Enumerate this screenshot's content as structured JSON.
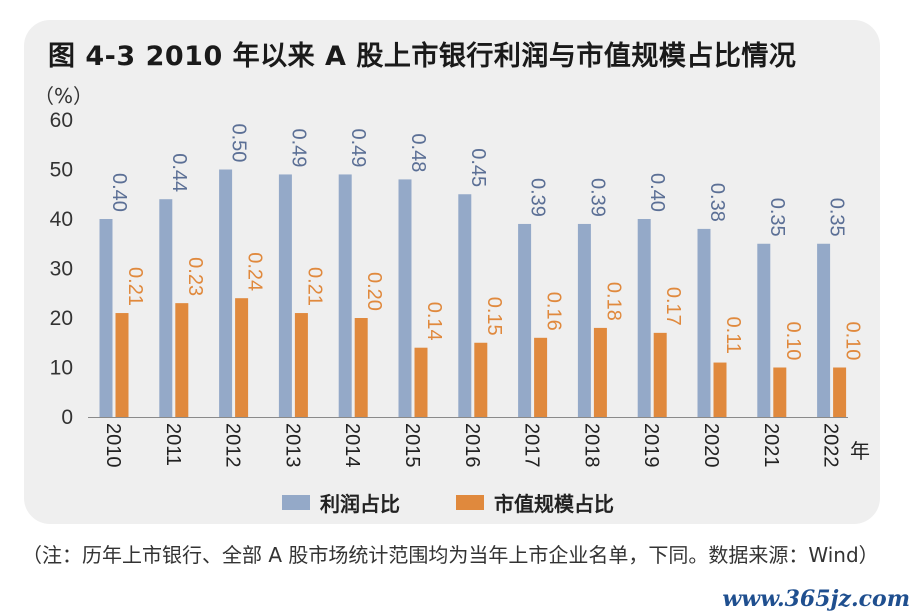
{
  "title": "图 4-3   2010 年以来 A 股上市银行利润与市值规模占比情况",
  "y_unit": "（%）",
  "x_unit": "年",
  "note": "（注：历年上市银行、全部 A 股市场统计范围均为当年上市企业名单，下同。数据来源：Wind）",
  "watermark": "www.365jz.com",
  "colors": {
    "profit": "#94a9c8",
    "market": "#e0893d",
    "profit_label": "#5b6f95",
    "market_label": "#e0893d"
  },
  "chart_data": {
    "type": "bar",
    "title": "图 4-3   2010 年以来 A 股上市银行利润与市值规模占比情况",
    "ylabel": "（%）",
    "xlabel": "年",
    "ylim": [
      0,
      60
    ],
    "yticks": [
      0,
      10,
      20,
      30,
      40,
      50,
      60
    ],
    "grid": false,
    "legend": "bottom",
    "categories": [
      "2010",
      "2011",
      "2012",
      "2013",
      "2014",
      "2015",
      "2016",
      "2017",
      "2018",
      "2019",
      "2020",
      "2021",
      "2022"
    ],
    "series": [
      {
        "name": "利润占比",
        "values": [
          40,
          44,
          50,
          49,
          49,
          48,
          45,
          39,
          39,
          40,
          38,
          35,
          35
        ],
        "labels": [
          "0.40",
          "0.44",
          "0.50",
          "0.49",
          "0.49",
          "0.48",
          "0.45",
          "0.39",
          "0.39",
          "0.40",
          "0.38",
          "0.35",
          "0.35"
        ]
      },
      {
        "name": "市值规模占比",
        "values": [
          21,
          23,
          24,
          21,
          20,
          14,
          15,
          16,
          18,
          17,
          11,
          10,
          10
        ],
        "labels": [
          "0.21",
          "0.23",
          "0.24",
          "0.21",
          "0.20",
          "0.14",
          "0.15",
          "0.16",
          "0.18",
          "0.17",
          "0.11",
          "0.10",
          "0.10"
        ]
      }
    ]
  }
}
